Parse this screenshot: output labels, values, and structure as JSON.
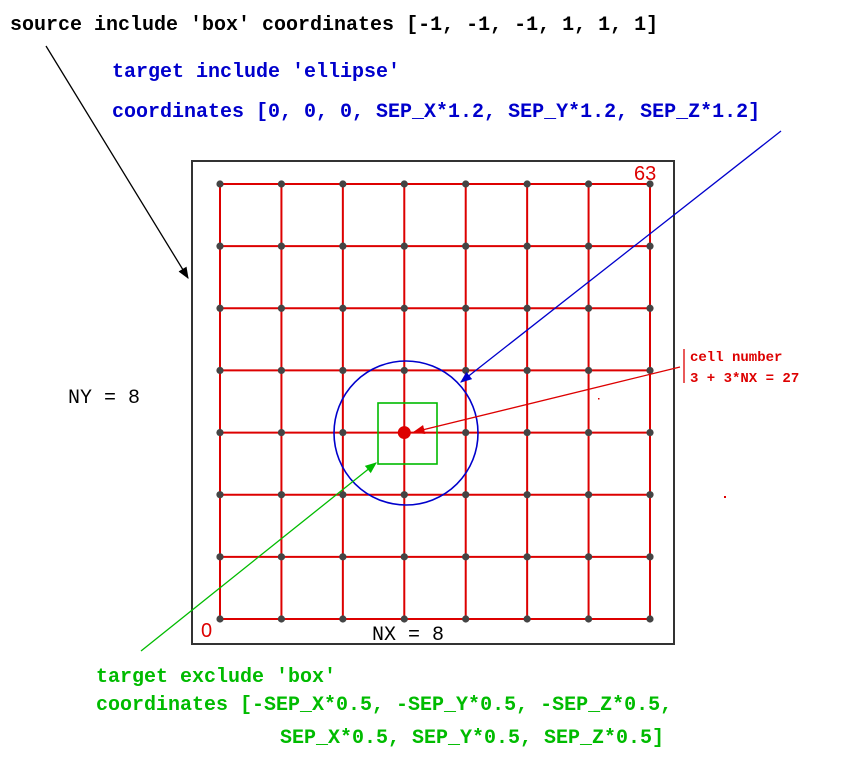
{
  "annotations": {
    "source_label": "source include 'box' coordinates [-1, -1, -1, 1, 1, 1]",
    "target_include_line1": "target include 'ellipse'",
    "target_include_line2": "coordinates [0, 0, 0, SEP_X*1.2, SEP_Y*1.2, SEP_Z*1.2]",
    "cell_number_line1": "cell number",
    "cell_number_line2": "3 + 3*NX = 27",
    "ny_label": "NY = 8",
    "nx_label": "NX = 8",
    "corner_min_label": "0",
    "corner_max_label": "63",
    "target_exclude_line1": "target exclude 'box'",
    "target_exclude_line2": "coordinates [-SEP_X*0.5, -SEP_Y*0.5, -SEP_Z*0.5,",
    "target_exclude_line3": "SEP_X*0.5, SEP_Y*0.5, SEP_Z*0.5]"
  },
  "grid": {
    "nx": 8,
    "ny": 8,
    "highlight_cell": {
      "col": 3,
      "row": 3
    }
  },
  "colors": {
    "black": "#000000",
    "blue": "#0000cc",
    "red": "#dd0000",
    "green": "#00bb00",
    "node": "#444444",
    "frame": "#333333"
  }
}
